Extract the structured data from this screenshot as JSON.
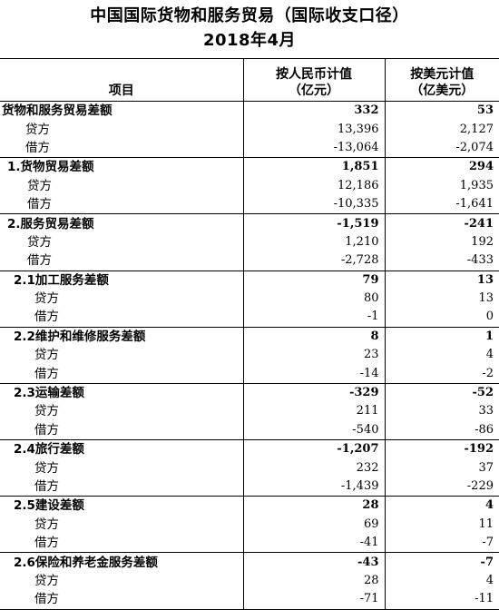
{
  "title_line1": "中国国际货物和服务贸易（国际收支口径）",
  "title_line2": "2018年4月",
  "headers": {
    "item": "项目",
    "rmb_line1": "按人民币计值",
    "rmb_line2": "（亿元）",
    "usd_line1": "按美元计值",
    "usd_line2": "（亿美元）"
  },
  "rows": [
    {
      "label": "货物和服务贸易差额",
      "rmb": "332",
      "usd": "53"
    },
    {
      "label": "贷方",
      "rmb": "13,396",
      "usd": "2,127"
    },
    {
      "label": "借方",
      "rmb": "-13,064",
      "usd": "-2,074"
    },
    {
      "label": "1.货物贸易差额",
      "rmb": "1,851",
      "usd": "294"
    },
    {
      "label": "贷方",
      "rmb": "12,186",
      "usd": "1,935"
    },
    {
      "label": "借方",
      "rmb": "-10,335",
      "usd": "-1,641"
    },
    {
      "label": "2.服务贸易差额",
      "rmb": "-1,519",
      "usd": "-241"
    },
    {
      "label": "贷方",
      "rmb": "1,210",
      "usd": "192"
    },
    {
      "label": "借方",
      "rmb": "-2,728",
      "usd": "-433"
    },
    {
      "label": "2.1加工服务差额",
      "rmb": "79",
      "usd": "13"
    },
    {
      "label": "贷方",
      "rmb": "80",
      "usd": "13"
    },
    {
      "label": "借方",
      "rmb": "-1",
      "usd": "0"
    },
    {
      "label": "2.2维护和维修服务差额",
      "rmb": "8",
      "usd": "1"
    },
    {
      "label": "贷方",
      "rmb": "23",
      "usd": "4"
    },
    {
      "label": "借方",
      "rmb": "-14",
      "usd": "-2"
    },
    {
      "label": "2.3运输差额",
      "rmb": "-329",
      "usd": "-52"
    },
    {
      "label": "贷方",
      "rmb": "211",
      "usd": "33"
    },
    {
      "label": "借方",
      "rmb": "-540",
      "usd": "-86"
    },
    {
      "label": "2.4旅行差额",
      "rmb": "-1,207",
      "usd": "-192"
    },
    {
      "label": "贷方",
      "rmb": "232",
      "usd": "37"
    },
    {
      "label": "借方",
      "rmb": "-1,439",
      "usd": "-229"
    },
    {
      "label": "2.5建设差额",
      "rmb": "28",
      "usd": "4"
    },
    {
      "label": "贷方",
      "rmb": "69",
      "usd": "11"
    },
    {
      "label": "借方",
      "rmb": "-41",
      "usd": "-7"
    },
    {
      "label": "2.6保险和养老金服务差额",
      "rmb": "-43",
      "usd": "-7"
    },
    {
      "label": "贷方",
      "rmb": "28",
      "usd": "4"
    },
    {
      "label": "借方",
      "rmb": "-71",
      "usd": "-11"
    }
  ]
}
